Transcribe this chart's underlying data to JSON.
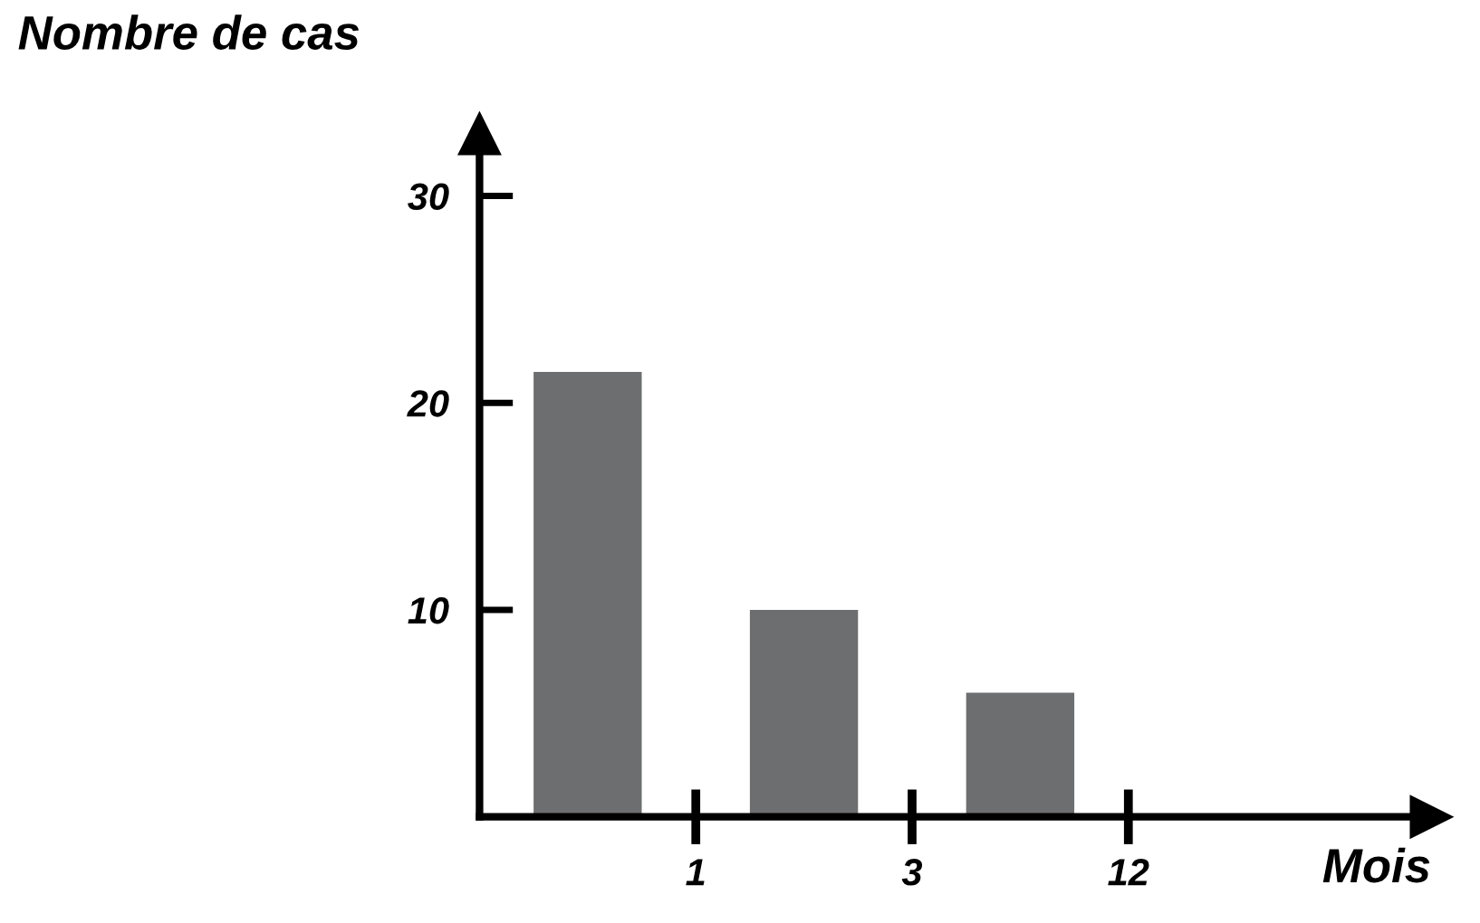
{
  "chart_data": {
    "type": "bar",
    "categories": [
      null,
      null,
      null
    ],
    "values": [
      21.5,
      10,
      6
    ],
    "color": "#6d6e70",
    "xlabel": "Mois",
    "ylabel": "Nombre de cas",
    "annotations": [
      "1",
      "3",
      "12"
    ],
    "ylim": [
      0,
      33
    ],
    "yticks": [
      10,
      20,
      30
    ],
    "grid": false,
    "legend": false
  }
}
